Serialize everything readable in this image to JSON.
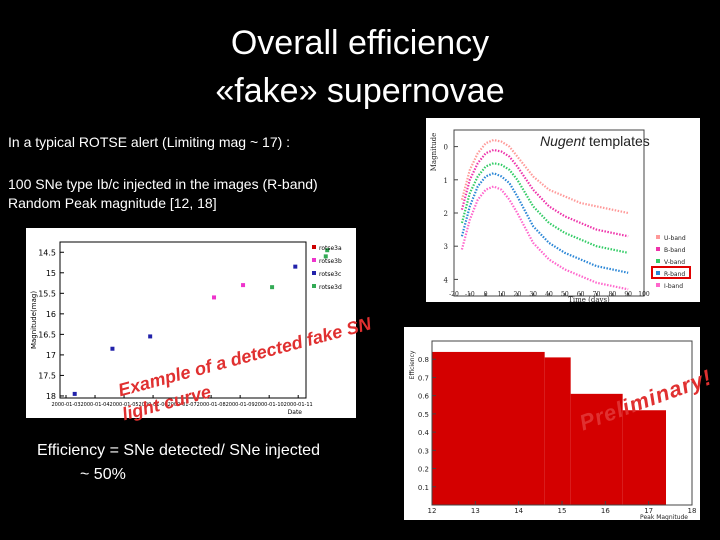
{
  "title": {
    "line1": "Overall efficiency",
    "line2": "«fake» supernovae"
  },
  "text": {
    "alert": "In a typical ROTSE alert (Limiting mag ~ 17) :",
    "injected1": "100 SNe type Ib/c injected in the images (R-band)",
    "injected2": "Random Peak magnitude [12, 18]",
    "efficiency": "Efficiency = SNe detected/ SNe injected",
    "approx": "~ 50%",
    "nugent_italic": "Nugent",
    "nugent_rest": " templates"
  },
  "annotations": {
    "example1": "Example of a detected fake SN",
    "example2": "light curve",
    "preliminary": "Preliminary!"
  },
  "colors": {
    "u_band": "#ff9999",
    "b_band": "#ee33aa",
    "v_band": "#33cc66",
    "r_band": "#2a86d6",
    "i_band": "#ff66cc",
    "hist_fill": "#d40000",
    "annotation": "#e03030"
  },
  "chart_data": [
    {
      "type": "scatter",
      "name": "light-curve",
      "ylabel": "Magnitude(mag)",
      "xlabel": "Date",
      "ylim": [
        14.25,
        18.05
      ],
      "yticks": [
        "14.5",
        "15",
        "15.5",
        "16",
        "16.5",
        "17",
        "17.5",
        "18"
      ],
      "ytick_values": [
        14.5,
        15,
        15.5,
        16,
        16.5,
        17,
        17.5,
        18
      ],
      "xtick_labels": [
        "2000-01-03",
        "2000-01-04",
        "2000-01-05",
        "2000-01-06",
        "2000-01-07",
        "2000-01-08",
        "2000-01-09",
        "2000-01-10",
        "2000-01-11"
      ],
      "legend": [
        "rotse3a",
        "rotse3b",
        "rotse3c",
        "rotse3d"
      ],
      "legend_placement": "top-right",
      "points": [
        {
          "x": 0.3,
          "y": 17.95,
          "s": 2
        },
        {
          "x": 1.6,
          "y": 16.85,
          "s": 2
        },
        {
          "x": 2.9,
          "y": 16.55,
          "s": 2
        },
        {
          "x": 5.1,
          "y": 15.6,
          "s": 1
        },
        {
          "x": 6.1,
          "y": 15.3,
          "s": 1
        },
        {
          "x": 7.1,
          "y": 15.35,
          "s": 3
        },
        {
          "x": 7.9,
          "y": 14.85,
          "s": 2
        },
        {
          "x": 8.95,
          "y": 14.6,
          "s": 3
        },
        {
          "x": 9.0,
          "y": 14.45,
          "s": 3
        }
      ]
    },
    {
      "type": "line",
      "name": "nugent-templates",
      "ylabel": "Magnitude",
      "xlabel": "Time (days)",
      "xlim": [
        -20,
        100
      ],
      "ylim": [
        4.5,
        -0.5
      ],
      "xticks": [
        -20,
        -10,
        0,
        10,
        20,
        30,
        40,
        50,
        60,
        70,
        80,
        90,
        100
      ],
      "yticks": [
        0,
        1,
        2,
        3,
        4
      ],
      "series": [
        {
          "name": "U-band",
          "x": [
            -15,
            -10,
            -5,
            0,
            5,
            10,
            15,
            20,
            30,
            40,
            50,
            60,
            70,
            80,
            90
          ],
          "y": [
            1.6,
            0.7,
            0.2,
            -0.1,
            -0.2,
            -0.15,
            0.0,
            0.3,
            0.9,
            1.3,
            1.5,
            1.7,
            1.8,
            1.9,
            2.0
          ]
        },
        {
          "name": "B-band",
          "x": [
            -15,
            -10,
            -5,
            0,
            5,
            10,
            15,
            20,
            30,
            40,
            50,
            60,
            70,
            80,
            90
          ],
          "y": [
            1.9,
            1.0,
            0.5,
            0.2,
            0.1,
            0.15,
            0.3,
            0.6,
            1.3,
            1.8,
            2.1,
            2.3,
            2.5,
            2.6,
            2.7
          ]
        },
        {
          "name": "V-band",
          "x": [
            -15,
            -10,
            -5,
            0,
            5,
            10,
            15,
            20,
            30,
            40,
            50,
            60,
            70,
            80,
            90
          ],
          "y": [
            2.3,
            1.4,
            0.9,
            0.6,
            0.5,
            0.55,
            0.7,
            1.0,
            1.8,
            2.3,
            2.6,
            2.8,
            3.0,
            3.1,
            3.2
          ]
        },
        {
          "name": "R-band",
          "x": [
            -15,
            -10,
            -5,
            0,
            5,
            10,
            15,
            20,
            30,
            40,
            50,
            60,
            70,
            80,
            90
          ],
          "y": [
            2.7,
            1.8,
            1.2,
            0.9,
            0.8,
            0.9,
            1.1,
            1.5,
            2.4,
            2.9,
            3.2,
            3.4,
            3.6,
            3.7,
            3.8
          ]
        },
        {
          "name": "I-band",
          "x": [
            -15,
            -10,
            -5,
            0,
            5,
            10,
            15,
            20,
            30,
            40,
            50,
            60,
            70,
            80,
            90
          ],
          "y": [
            3.1,
            2.2,
            1.6,
            1.3,
            1.2,
            1.3,
            1.6,
            2.0,
            2.9,
            3.4,
            3.7,
            3.9,
            4.1,
            4.2,
            4.3
          ]
        }
      ],
      "legend": [
        "U-band",
        "B-band",
        "V-band",
        "R-band",
        "I-band"
      ],
      "legend_placement": "right",
      "highlighted": "R-band"
    },
    {
      "type": "bar",
      "name": "efficiency-histogram",
      "ylabel": "Efficiency",
      "xlabel": "Peak Magnitude",
      "xlim": [
        12,
        18
      ],
      "ylim": [
        0,
        0.9
      ],
      "xticks": [
        "12",
        "13",
        "14",
        "15",
        "16",
        "17",
        "18"
      ],
      "yticks": [
        "0.1",
        "0.2",
        "0.3",
        "0.4",
        "0.5",
        "0.6",
        "0.7",
        "0.8"
      ],
      "bins": [
        [
          12,
          14.6
        ],
        [
          14.6,
          15.2
        ],
        [
          15.2,
          16.4
        ],
        [
          16.4,
          17.4
        ],
        [
          17.4,
          18
        ]
      ],
      "values": [
        0.84,
        0.81,
        0.61,
        0.52,
        0.0
      ]
    }
  ]
}
